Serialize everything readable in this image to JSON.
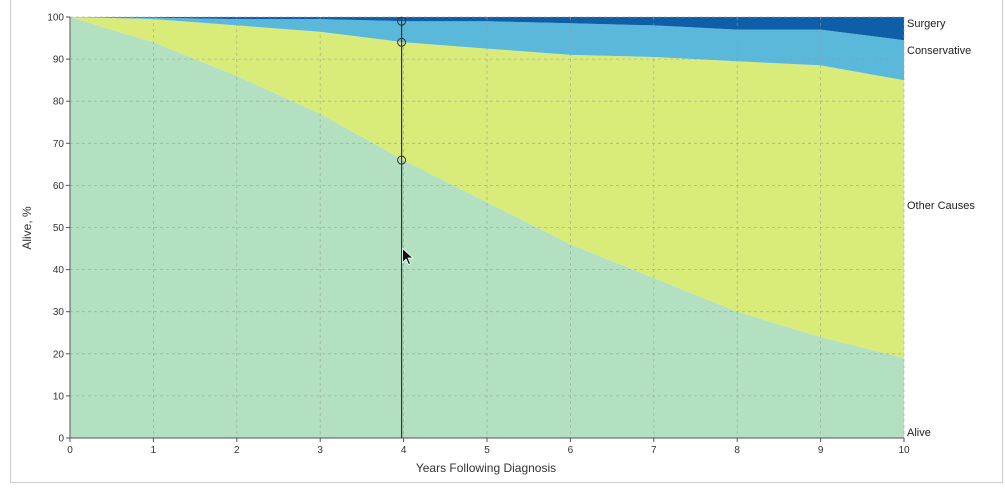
{
  "chart_data": {
    "type": "area",
    "stacked": true,
    "xlabel": "Years Following Diagnosis",
    "ylabel": "Alive, %",
    "xlim": [
      0,
      10
    ],
    "ylim": [
      0,
      100
    ],
    "x_ticks": [
      0,
      1,
      2,
      3,
      4,
      5,
      6,
      7,
      8,
      9,
      10
    ],
    "y_ticks": [
      0,
      10,
      20,
      30,
      40,
      50,
      60,
      70,
      80,
      90,
      100
    ],
    "grid": true,
    "x": [
      0,
      1,
      2,
      3,
      4,
      5,
      6,
      7,
      8,
      9,
      10
    ],
    "series": [
      {
        "name": "Alive",
        "color": "#b3e0c0",
        "values": [
          100,
          94,
          86,
          77,
          66,
          56,
          46,
          38,
          30,
          24,
          19
        ]
      },
      {
        "name": "Other Causes",
        "color": "#d9ec7a",
        "values": [
          0,
          5.5,
          12,
          19.5,
          28,
          36.5,
          45,
          52.5,
          59.5,
          64.5,
          66
        ]
      },
      {
        "name": "Conservative",
        "color": "#5ab8db",
        "values": [
          0,
          0.3,
          1.5,
          3,
          5,
          6.5,
          7.5,
          7.5,
          7.5,
          8.5,
          9.5
        ]
      },
      {
        "name": "Surgery",
        "color": "#0f5fa8",
        "values": [
          0,
          0.2,
          0.5,
          0.5,
          1,
          1,
          1.5,
          2,
          3,
          3,
          5.5
        ]
      }
    ],
    "hover": {
      "x": 4,
      "markers": [
        66,
        94,
        99
      ]
    },
    "colors": {
      "grid": "#9a9a9a",
      "axis": "#555555",
      "crosshair": "#333333"
    }
  }
}
